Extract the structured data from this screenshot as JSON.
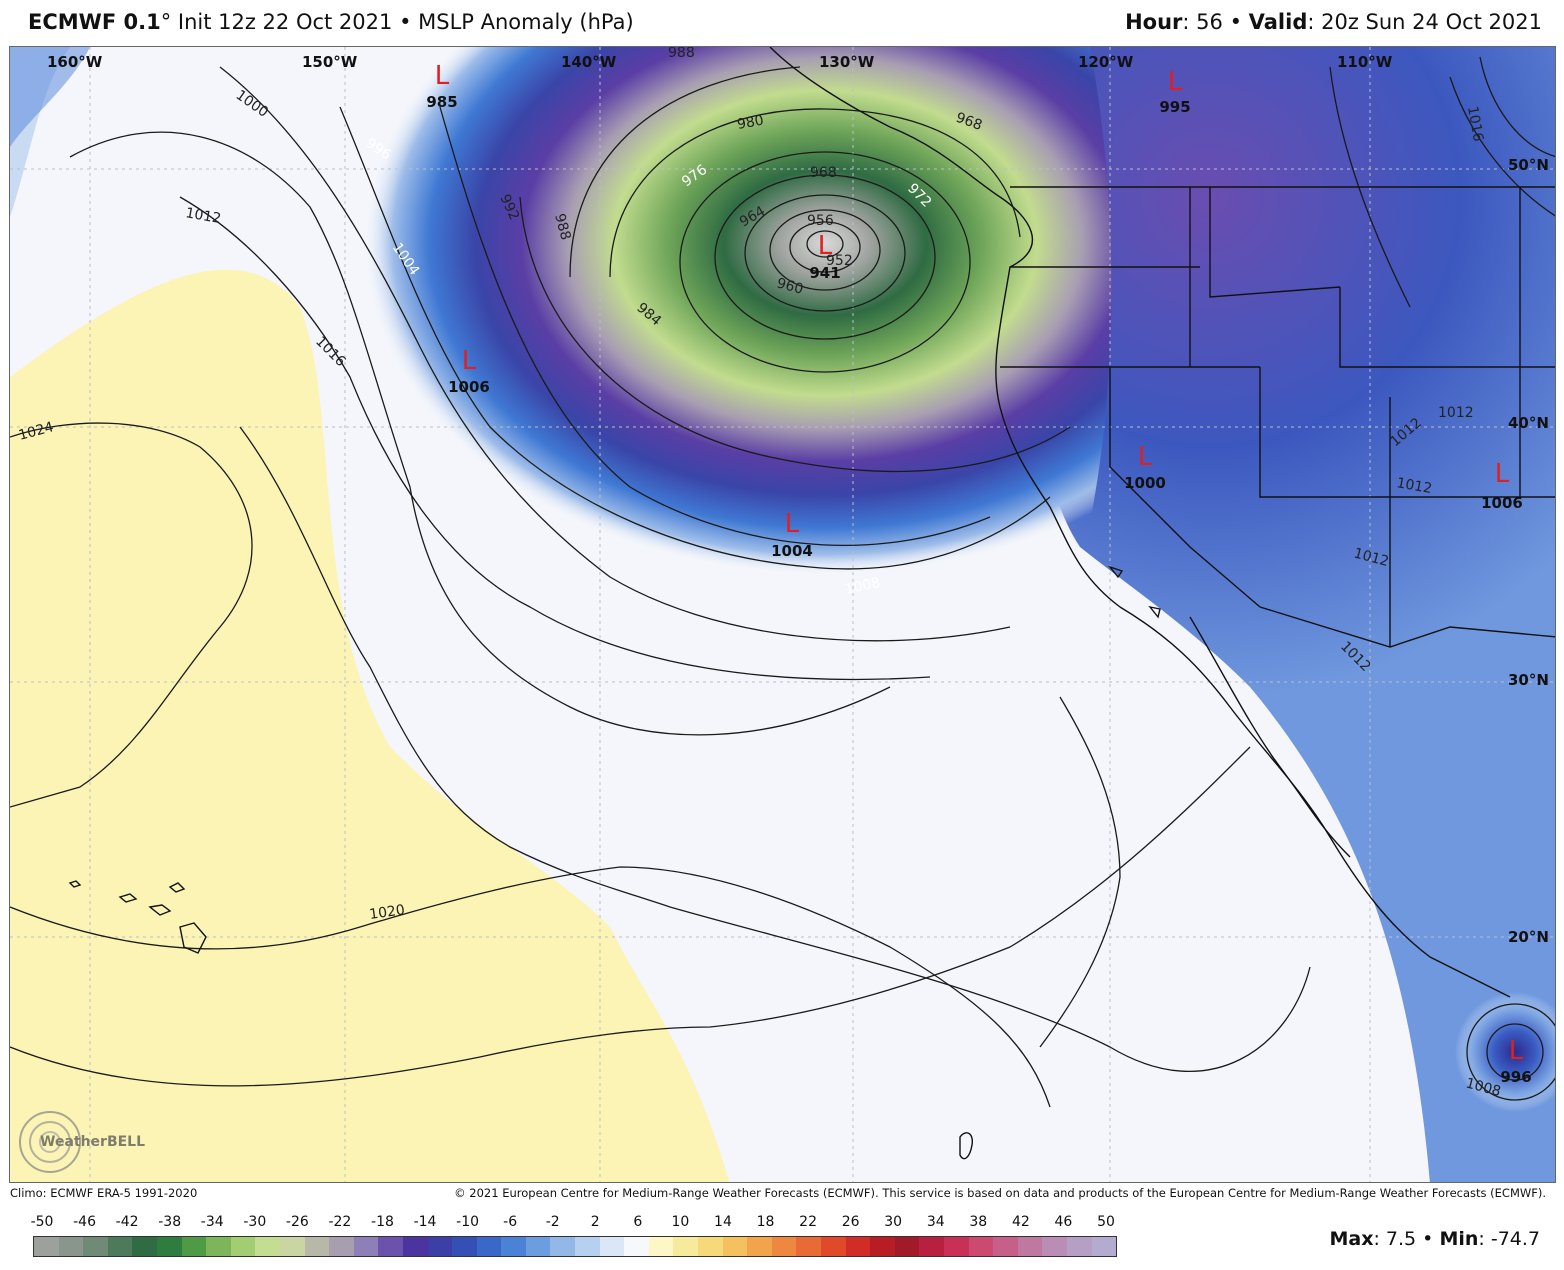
{
  "header": {
    "model": "ECMWF 0.1",
    "deg": "°",
    "init": "Init 12z 22 Oct 2021",
    "sep": "•",
    "field": "MSLP Anomaly (hPa)",
    "hour_label": "Hour",
    "hour_value": ": 56",
    "valid_label": "Valid",
    "valid_value": ": 20z Sun 24 Oct 2021"
  },
  "map": {
    "longitude_labels": [
      "160°W",
      "150°W",
      "140°W",
      "130°W",
      "120°W",
      "110°W"
    ],
    "latitude_labels": [
      "50°N",
      "40°N",
      "30°N",
      "20°N"
    ],
    "isobar_labels": [
      "988",
      "1000",
      "996",
      "992",
      "988",
      "980",
      "976",
      "968",
      "972",
      "964",
      "956",
      "952",
      "960",
      "984",
      "1012",
      "1004",
      "1016",
      "1024",
      "1008",
      "1020",
      "1012",
      "1016",
      "1012",
      "1012",
      "1012",
      "1012",
      "1008",
      "968"
    ],
    "lows": [
      {
        "symbol": "L",
        "value": "985"
      },
      {
        "symbol": "L",
        "value": "941"
      },
      {
        "symbol": "L",
        "value": "995"
      },
      {
        "symbol": "L",
        "value": "1006"
      },
      {
        "symbol": "L",
        "value": "1004"
      },
      {
        "symbol": "L",
        "value": "1000"
      },
      {
        "symbol": "L",
        "value": "1006"
      },
      {
        "symbol": "L",
        "value": "996"
      }
    ],
    "watermark": "WeatherBELL",
    "colors": {
      "anomaly_deep_low": "#9a9a9a",
      "anomaly_green": "#2e6b3a",
      "anomaly_lime": "#b8d98a",
      "anomaly_purple": "#4b2d8a",
      "anomaly_blue": "#3a6fd0",
      "anomaly_light_blue": "#b9cdef",
      "anomaly_white": "#f4f6fb",
      "anomaly_yellow": "#fbf4b0",
      "low_marker": "#e02020"
    }
  },
  "footer": {
    "climo": "Climo: ECMWF ERA-5 1991-2020",
    "copyright": "© 2021 European Centre for Medium-Range Weather Forecasts (ECMWF). This service is based on data and products of the European Centre for Medium-Range Weather Forecasts (ECMWF)."
  },
  "colorbar": {
    "labels": [
      "-50",
      "-46",
      "-42",
      "-38",
      "-34",
      "-30",
      "-26",
      "-22",
      "-18",
      "-14",
      "-10",
      "-6",
      "-2",
      "2",
      "6",
      "10",
      "14",
      "18",
      "22",
      "26",
      "30",
      "34",
      "38",
      "42",
      "46",
      "50"
    ],
    "colors": [
      "#9da19e",
      "#8a968d",
      "#6f8a77",
      "#4d7a5a",
      "#2f6b43",
      "#2e7d3f",
      "#4f9a45",
      "#7cb55a",
      "#a3cd72",
      "#c4dd92",
      "#c9d6a3",
      "#b8b8a8",
      "#a79fb0",
      "#8e7fb8",
      "#6b52ad",
      "#4b34a0",
      "#3d3fa8",
      "#3550b5",
      "#3a68c8",
      "#4b82d6",
      "#6b9ddf",
      "#93b8e8",
      "#b8d0f0",
      "#dbe6f6",
      "#f7f8fb",
      "#fdf7c8",
      "#f8ea9c",
      "#f6d97a",
      "#f4c060",
      "#f2a44c",
      "#ee8840",
      "#e86a34",
      "#e04a2a",
      "#d22c26",
      "#b81c24",
      "#a01a2a",
      "#b82040",
      "#c83058",
      "#cc4a70",
      "#c66088",
      "#bf78a0",
      "#b98db5",
      "#b59fc4",
      "#b4acd0"
    ]
  },
  "stats": {
    "max_label": "Max",
    "max_value": ": 7.5",
    "min_label": "Min",
    "min_value": ": -74.7",
    "sep": "•"
  }
}
